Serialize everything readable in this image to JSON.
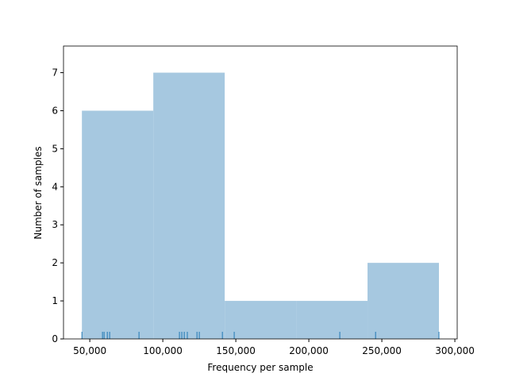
{
  "chart_data": {
    "type": "histogram",
    "x_label": "Frequency per sample",
    "y_label": "Number of samples",
    "bins": [
      44600,
      93500,
      142400,
      191300,
      240200,
      289100
    ],
    "counts": [
      6,
      7,
      1,
      1,
      2
    ],
    "color": "#a6c8e0",
    "rug": [
      44600,
      58700,
      59800,
      62000,
      63600,
      83700,
      111400,
      113000,
      114700,
      116800,
      123400,
      125000,
      140800,
      148900,
      221200,
      245700,
      289100
    ],
    "rug_color": "#1f77b4",
    "xlim": [
      32000,
      301600
    ],
    "ylim": [
      0,
      7.7
    ],
    "xticks": [
      {
        "value": 50000,
        "label": "50,000"
      },
      {
        "value": 100000,
        "label": "100,000"
      },
      {
        "value": 150000,
        "label": "150,000"
      },
      {
        "value": 200000,
        "label": "200,000"
      },
      {
        "value": 250000,
        "label": "250,000"
      },
      {
        "value": 300000,
        "label": "300,000"
      }
    ],
    "yticks": [
      0,
      1,
      2,
      3,
      4,
      5,
      6,
      7
    ]
  }
}
